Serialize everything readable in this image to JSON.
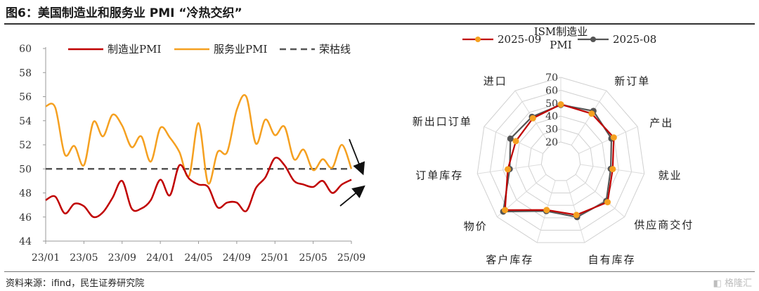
{
  "title": "图6：美国制造业和服务业 PMI “冷热交织”",
  "source": "资料来源：ifind，民生证券研究院",
  "watermark": "格隆汇",
  "colors": {
    "manufacturing": "#c00000",
    "services": "#f5a020",
    "reference": "#555555",
    "radar_current": "#c00000",
    "radar_current_marker": "#f5a020",
    "radar_prior": "#555555"
  },
  "chart_data": [
    {
      "type": "line",
      "ylim": [
        44,
        60
      ],
      "yticks": [
        44,
        46,
        48,
        50,
        52,
        54,
        56,
        58,
        60
      ],
      "xticks": [
        "23/01",
        "23/05",
        "23/09",
        "24/01",
        "24/05",
        "24/09",
        "25/01",
        "25/05",
        "25/09"
      ],
      "legend_position": "top",
      "series": [
        {
          "name": "制造业PMI",
          "color": "#c00000",
          "values": [
            47.4,
            47.7,
            46.3,
            47.1,
            46.9,
            46.0,
            46.4,
            47.6,
            49.0,
            46.7,
            46.7,
            47.4,
            49.1,
            47.8,
            50.3,
            49.2,
            48.7,
            48.5,
            46.8,
            47.2,
            47.2,
            46.5,
            48.4,
            49.3,
            50.9,
            50.3,
            49.0,
            48.7,
            48.5,
            49.0,
            48.0,
            48.7,
            49.1
          ]
        },
        {
          "name": "服务业PMI",
          "color": "#f5a020",
          "values": [
            55.2,
            55.1,
            51.2,
            51.9,
            50.3,
            53.9,
            52.7,
            54.5,
            53.6,
            51.8,
            52.7,
            50.6,
            53.4,
            52.6,
            51.4,
            49.4,
            53.8,
            48.8,
            51.4,
            51.4,
            54.9,
            56.0,
            52.1,
            54.1,
            52.8,
            53.5,
            50.8,
            51.6,
            49.9,
            50.8,
            50.1,
            52.0,
            50.0
          ]
        },
        {
          "name": "荣枯线",
          "color": "#555555",
          "constant": 50
        }
      ]
    },
    {
      "type": "radar",
      "axes": [
        "ISM制造业PMI",
        "新订单",
        "产出",
        "就业",
        "供应商交付",
        "自有库存",
        "客户库存",
        "物价",
        "订单库存",
        "新出口订单",
        "进口"
      ],
      "rlim": [
        20,
        70
      ],
      "rticks": [
        20,
        30,
        40,
        50,
        60,
        70
      ],
      "legend_position": "top",
      "series": [
        {
          "name": "2025-09",
          "values": [
            49.1,
            48.9,
            49.8,
            45.3,
            52.6,
            47.7,
            43.7,
            61.9,
            46.2,
            43.0,
            44.7
          ]
        },
        {
          "name": "2025-08",
          "values": [
            48.7,
            51.4,
            47.8,
            43.8,
            51.3,
            49.4,
            44.6,
            63.7,
            44.7,
            47.6,
            46.0
          ]
        }
      ]
    }
  ]
}
